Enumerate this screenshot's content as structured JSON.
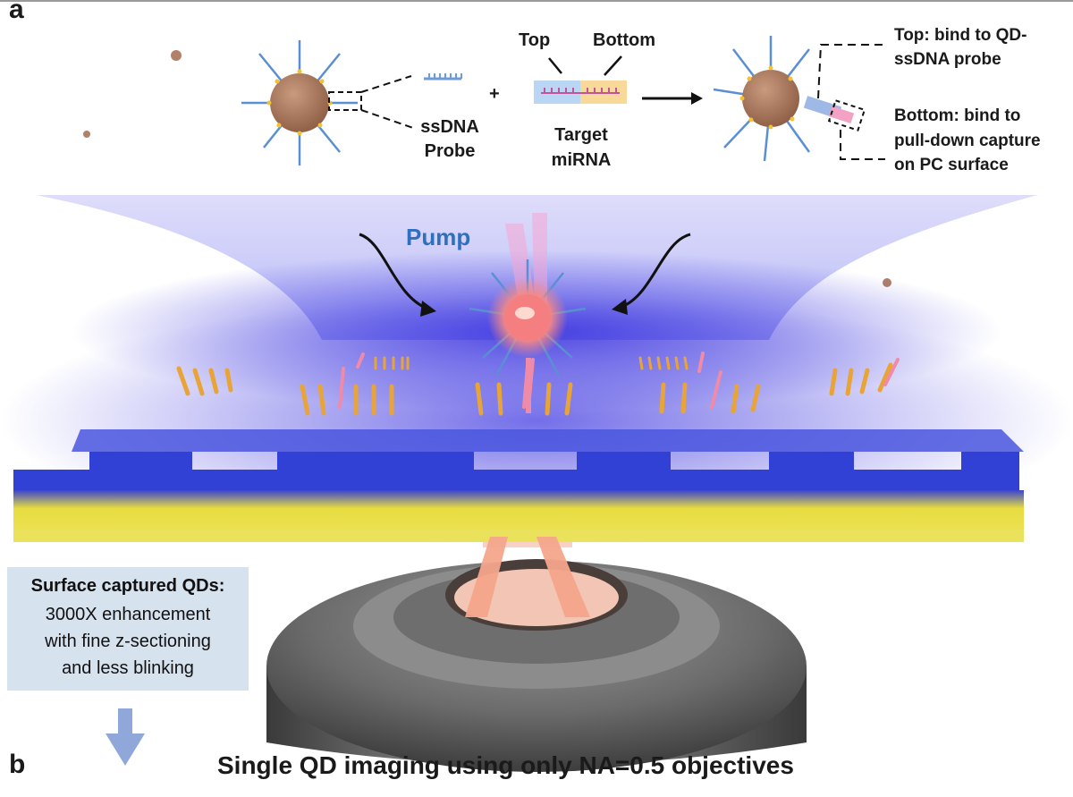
{
  "panel_a": {
    "letter": "a",
    "probe_label_line1": "ssDNA",
    "probe_label_line2": "Probe",
    "plus": "+",
    "top_label": "Top",
    "bottom_label": "Bottom",
    "target_label_line1": "Target",
    "target_label_line2": "miRNA",
    "callout_top_line1": "Top: bind to QD-",
    "callout_top_line2": "ssDNA probe",
    "callout_bottom_line1": "Bottom: bind to",
    "callout_bottom_line2": "pull-down capture",
    "callout_bottom_line3": "on PC surface"
  },
  "scene": {
    "pump_label": "Pump"
  },
  "info_box": {
    "title": "Surface captured QDs:",
    "line1": "3000X enhancement",
    "line2": "with fine z-sectioning",
    "line3": "and less blinking"
  },
  "panel_b": {
    "letter": "b",
    "title": "Single QD imaging using only NA=0.5 objectives"
  },
  "colors": {
    "qd_brown": "#9c6b4f",
    "probe_blue": "#5b8fd3",
    "pc_blue": "#2b3fd6",
    "substrate_yellow": "#e8dc3c",
    "emission_pink": "#f3a08f"
  }
}
